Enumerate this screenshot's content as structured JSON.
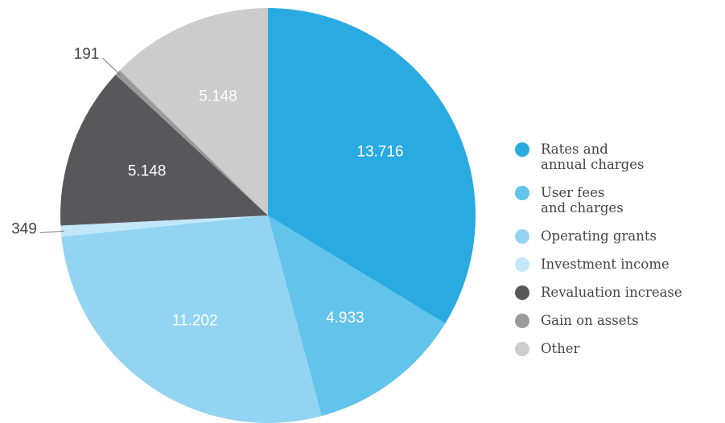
{
  "chart_data": {
    "type": "pie",
    "categories": [
      "Rates and\nannual charges",
      "User fees\nand charges",
      "Operating grants",
      "Investment income",
      "Revaluation increase",
      "Gain on assets",
      "Other"
    ],
    "values": [
      13716,
      4933,
      11202,
      349,
      5148,
      191,
      5148
    ],
    "value_labels": [
      "13.716",
      "4.933",
      "11.202",
      "349",
      "5.148",
      "191",
      "5.148"
    ],
    "colors": [
      "#29abe2",
      "#62c3eb",
      "#92d4f2",
      "#c2e7f8",
      "#58585a",
      "#9a9a9a",
      "#cccccc"
    ],
    "legend": "right"
  }
}
